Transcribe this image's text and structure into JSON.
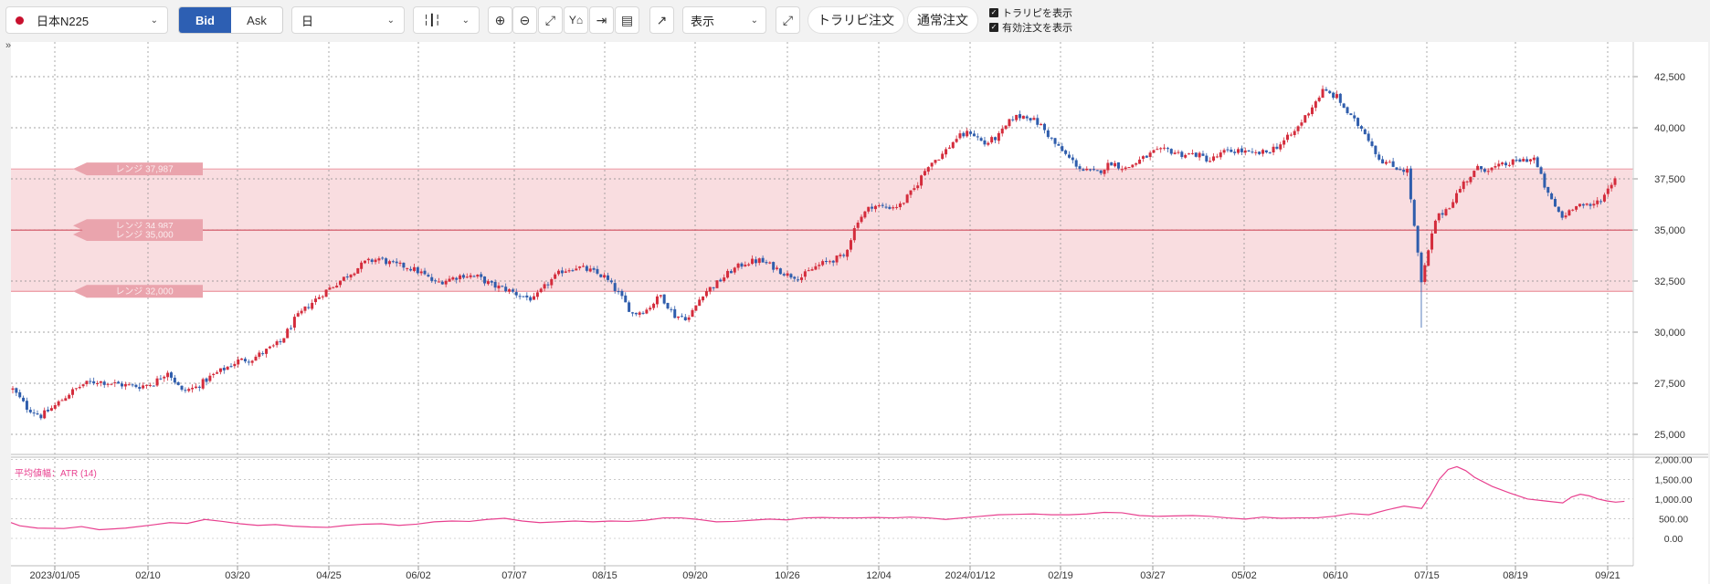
{
  "toolbar": {
    "symbol": "日本N225",
    "bid_label": "Bid",
    "ask_label": "Ask",
    "period": "日",
    "chart_type_icon": "candlestick-icon",
    "display_label": "表示",
    "trailing_order_button": "トラリピ注文",
    "normal_order_button": "通常注文",
    "show_trailing_label": "トラリピを表示",
    "show_active_orders_label": "有効注文を表示",
    "show_trailing_checked": true,
    "show_active_orders_checked": true,
    "collapse_left": "»",
    "collapse_right": "»"
  },
  "colors": {
    "up": "#d42c3c",
    "down": "#2f5dac",
    "range_band": "#f9dde0",
    "atr_line": "#e8408f"
  },
  "range_labels": [
    "レンジ 37,987",
    "レンジ 34,987",
    "レンジ 35,000",
    "レンジ 32,000"
  ],
  "atr_label": "平均値幅：ATR (14)",
  "chart_data": [
    {
      "type": "candlestick",
      "title": "",
      "x_tick_labels": [
        "2023/01/05",
        "02/10",
        "03/20",
        "04/25",
        "06/02",
        "07/07",
        "08/15",
        "09/20",
        "10/26",
        "12/04",
        "2024/01/12",
        "02/19",
        "03/27",
        "05/02",
        "06/10",
        "07/15",
        "08/19",
        "09/21"
      ],
      "y_tick_labels": [
        "42,500",
        "40,000",
        "37,500",
        "35,000",
        "32,500",
        "30,000",
        "27,500",
        "25,000"
      ],
      "ylim": [
        24000,
        43500
      ],
      "grid": true,
      "range_band": [
        32000,
        37987
      ],
      "range_lines": [
        34987,
        35000
      ],
      "close_anchors": [
        [
          0,
          27200
        ],
        [
          4,
          26300
        ],
        [
          8,
          25900
        ],
        [
          12,
          26400
        ],
        [
          16,
          27000
        ],
        [
          20,
          27450
        ],
        [
          24,
          27600
        ],
        [
          28,
          27500
        ],
        [
          32,
          27400
        ],
        [
          36,
          27350
        ],
        [
          40,
          27500
        ],
        [
          44,
          28100
        ],
        [
          48,
          27100
        ],
        [
          52,
          27300
        ],
        [
          56,
          27800
        ],
        [
          60,
          28200
        ],
        [
          64,
          28600
        ],
        [
          68,
          28700
        ],
        [
          72,
          29100
        ],
        [
          76,
          29500
        ],
        [
          80,
          30600
        ],
        [
          84,
          31300
        ],
        [
          88,
          31900
        ],
        [
          92,
          32400
        ],
        [
          96,
          32900
        ],
        [
          100,
          33400
        ],
        [
          104,
          33600
        ],
        [
          108,
          33300
        ],
        [
          112,
          33200
        ],
        [
          116,
          32900
        ],
        [
          120,
          32400
        ],
        [
          124,
          32600
        ],
        [
          128,
          32800
        ],
        [
          132,
          32700
        ],
        [
          136,
          32300
        ],
        [
          140,
          32100
        ],
        [
          144,
          31800
        ],
        [
          148,
          31600
        ],
        [
          152,
          32400
        ],
        [
          156,
          33000
        ],
        [
          160,
          33200
        ],
        [
          164,
          33000
        ],
        [
          168,
          32700
        ],
        [
          172,
          31900
        ],
        [
          176,
          30900
        ],
        [
          180,
          31100
        ],
        [
          184,
          31800
        ],
        [
          188,
          30800
        ],
        [
          192,
          30700
        ],
        [
          196,
          31900
        ],
        [
          200,
          32400
        ],
        [
          204,
          33000
        ],
        [
          208,
          33400
        ],
        [
          212,
          33500
        ],
        [
          216,
          33200
        ],
        [
          220,
          32800
        ],
        [
          224,
          32700
        ],
        [
          228,
          33200
        ],
        [
          232,
          33500
        ],
        [
          236,
          33700
        ],
        [
          240,
          35500
        ],
        [
          244,
          36200
        ],
        [
          248,
          36100
        ],
        [
          252,
          36200
        ],
        [
          256,
          37000
        ],
        [
          260,
          38200
        ],
        [
          264,
          38700
        ],
        [
          268,
          39500
        ],
        [
          272,
          39800
        ],
        [
          276,
          39200
        ],
        [
          280,
          39600
        ],
        [
          284,
          40500
        ],
        [
          288,
          40600
        ],
        [
          292,
          40100
        ],
        [
          296,
          39200
        ],
        [
          300,
          38500
        ],
        [
          304,
          37900
        ],
        [
          308,
          37800
        ],
        [
          312,
          38300
        ],
        [
          316,
          38000
        ],
        [
          320,
          38400
        ],
        [
          324,
          38800
        ],
        [
          328,
          38900
        ],
        [
          332,
          38700
        ],
        [
          336,
          38700
        ],
        [
          340,
          38400
        ],
        [
          344,
          38800
        ],
        [
          348,
          38900
        ],
        [
          352,
          38700
        ],
        [
          356,
          38800
        ],
        [
          360,
          39200
        ],
        [
          364,
          39800
        ],
        [
          368,
          40800
        ],
        [
          372,
          41800
        ],
        [
          376,
          41500
        ],
        [
          380,
          40500
        ],
        [
          384,
          39800
        ],
        [
          388,
          38500
        ],
        [
          392,
          38100
        ],
        [
          396,
          37900
        ],
        [
          400,
          32400
        ],
        [
          404,
          35500
        ],
        [
          408,
          36200
        ],
        [
          412,
          37300
        ],
        [
          416,
          38000
        ],
        [
          420,
          38000
        ],
        [
          424,
          38200
        ],
        [
          428,
          38400
        ],
        [
          432,
          38500
        ],
        [
          436,
          36700
        ],
        [
          440,
          35600
        ],
        [
          444,
          36300
        ],
        [
          448,
          36100
        ],
        [
          452,
          36700
        ],
        [
          455,
          37600
        ]
      ],
      "up_color": "#d42c3c",
      "down_color": "#2f5dac"
    },
    {
      "type": "line",
      "title": "平均値幅：ATR (14)",
      "y_tick_labels": [
        "2,000.00",
        "1,500.00",
        "1,000.00",
        "500.00",
        "0.00"
      ],
      "ylim": [
        0,
        2000
      ],
      "series": [
        {
          "name": "ATR (14)",
          "points": [
            [
              0,
              400
            ],
            [
              10,
              320
            ],
            [
              30,
              260
            ],
            [
              60,
              250
            ],
            [
              80,
              300
            ],
            [
              100,
              220
            ],
            [
              130,
              260
            ],
            [
              160,
              340
            ],
            [
              180,
              400
            ],
            [
              200,
              380
            ],
            [
              220,
              480
            ],
            [
              240,
              430
            ],
            [
              260,
              370
            ],
            [
              280,
              330
            ],
            [
              300,
              350
            ],
            [
              320,
              310
            ],
            [
              340,
              290
            ],
            [
              360,
              280
            ],
            [
              380,
              330
            ],
            [
              400,
              360
            ],
            [
              420,
              370
            ],
            [
              440,
              330
            ],
            [
              460,
              360
            ],
            [
              480,
              420
            ],
            [
              500,
              440
            ],
            [
              520,
              430
            ],
            [
              540,
              480
            ],
            [
              560,
              510
            ],
            [
              580,
              440
            ],
            [
              600,
              400
            ],
            [
              620,
              420
            ],
            [
              640,
              440
            ],
            [
              660,
              420
            ],
            [
              680,
              440
            ],
            [
              700,
              430
            ],
            [
              720,
              460
            ],
            [
              740,
              520
            ],
            [
              760,
              520
            ],
            [
              780,
              480
            ],
            [
              800,
              420
            ],
            [
              820,
              430
            ],
            [
              840,
              460
            ],
            [
              860,
              490
            ],
            [
              880,
              470
            ],
            [
              900,
              520
            ],
            [
              920,
              530
            ],
            [
              940,
              520
            ],
            [
              960,
              520
            ],
            [
              980,
              530
            ],
            [
              1000,
              520
            ],
            [
              1020,
              540
            ],
            [
              1040,
              520
            ],
            [
              1060,
              480
            ],
            [
              1080,
              520
            ],
            [
              1100,
              560
            ],
            [
              1120,
              600
            ],
            [
              1140,
              610
            ],
            [
              1160,
              620
            ],
            [
              1180,
              600
            ],
            [
              1200,
              600
            ],
            [
              1220,
              620
            ],
            [
              1240,
              660
            ],
            [
              1260,
              650
            ],
            [
              1280,
              580
            ],
            [
              1300,
              560
            ],
            [
              1320,
              570
            ],
            [
              1340,
              580
            ],
            [
              1360,
              560
            ],
            [
              1380,
              520
            ],
            [
              1400,
              490
            ],
            [
              1420,
              540
            ],
            [
              1440,
              510
            ],
            [
              1460,
              520
            ],
            [
              1480,
              520
            ],
            [
              1500,
              560
            ],
            [
              1520,
              630
            ],
            [
              1540,
              600
            ],
            [
              1560,
              720
            ],
            [
              1580,
              820
            ],
            [
              1600,
              760
            ],
            [
              1610,
              1100
            ],
            [
              1620,
              1500
            ],
            [
              1630,
              1750
            ],
            [
              1640,
              1820
            ],
            [
              1650,
              1720
            ],
            [
              1660,
              1550
            ],
            [
              1680,
              1320
            ],
            [
              1700,
              1150
            ],
            [
              1720,
              1000
            ],
            [
              1740,
              950
            ],
            [
              1760,
              900
            ],
            [
              1770,
              1050
            ],
            [
              1780,
              1120
            ],
            [
              1790,
              1080
            ],
            [
              1800,
              1000
            ],
            [
              1810,
              950
            ],
            [
              1820,
              920
            ],
            [
              1830,
              940
            ]
          ]
        }
      ],
      "color": "#e8408f"
    }
  ]
}
